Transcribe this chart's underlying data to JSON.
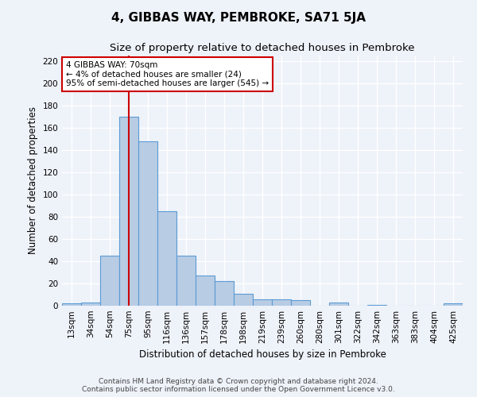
{
  "title": "4, GIBBAS WAY, PEMBROKE, SA71 5JA",
  "subtitle": "Size of property relative to detached houses in Pembroke",
  "xlabel": "Distribution of detached houses by size in Pembroke",
  "ylabel": "Number of detached properties",
  "footer_line1": "Contains HM Land Registry data © Crown copyright and database right 2024.",
  "footer_line2": "Contains public sector information licensed under the Open Government Licence v3.0.",
  "categories": [
    "13sqm",
    "34sqm",
    "54sqm",
    "75sqm",
    "95sqm",
    "116sqm",
    "136sqm",
    "157sqm",
    "178sqm",
    "198sqm",
    "219sqm",
    "239sqm",
    "260sqm",
    "280sqm",
    "301sqm",
    "322sqm",
    "342sqm",
    "363sqm",
    "383sqm",
    "404sqm",
    "425sqm"
  ],
  "values": [
    2,
    3,
    45,
    170,
    148,
    85,
    45,
    27,
    22,
    11,
    6,
    6,
    5,
    0,
    3,
    0,
    1,
    0,
    0,
    0,
    2
  ],
  "bar_color": "#b8cce4",
  "bar_edge_color": "#5b9bd5",
  "vline_x_index": 3,
  "vline_color": "#cc0000",
  "annotation_text": "4 GIBBAS WAY: 70sqm\n← 4% of detached houses are smaller (24)\n95% of semi-detached houses are larger (545) →",
  "annotation_box_color": "#ffffff",
  "annotation_box_edge": "#cc0000",
  "ylim": [
    0,
    225
  ],
  "yticks": [
    0,
    20,
    40,
    60,
    80,
    100,
    120,
    140,
    160,
    180,
    200,
    220
  ],
  "background_color": "#eef2f9",
  "grid_color": "#ffffff",
  "title_fontsize": 11,
  "subtitle_fontsize": 9.5,
  "axis_label_fontsize": 8.5,
  "tick_fontsize": 7.5,
  "footer_fontsize": 6.5
}
